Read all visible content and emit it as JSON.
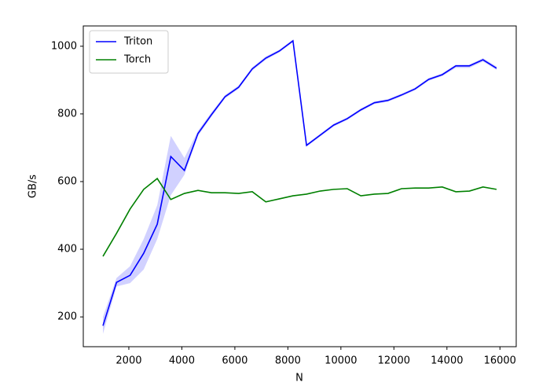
{
  "chart_data": {
    "type": "line",
    "x_label": "N",
    "y_label": "GB/s",
    "x": [
      1024,
      1536,
      2048,
      2560,
      3072,
      3584,
      4096,
      4608,
      5120,
      5632,
      6144,
      6656,
      7168,
      7680,
      8192,
      8704,
      9216,
      9728,
      10240,
      10752,
      11264,
      11776,
      12288,
      12800,
      13312,
      13824,
      14336,
      14848,
      15360,
      15872
    ],
    "series": [
      {
        "name": "Triton",
        "color": "#0000ff",
        "values": [
          174,
          302,
          323,
          388,
          474,
          674,
          633,
          742,
          798,
          851,
          879,
          933,
          965,
          986,
          1016,
          707,
          737,
          767,
          786,
          812,
          833,
          840,
          856,
          874,
          902,
          916,
          942,
          942,
          960,
          935
        ],
        "lower": [
          150,
          290,
          300,
          340,
          430,
          560,
          620,
          735,
          792,
          846,
          874,
          928,
          960,
          982,
          1012,
          703,
          733,
          763,
          782,
          808,
          829,
          836,
          852,
          870,
          898,
          912,
          936,
          936,
          955,
          930
        ],
        "upper": [
          200,
          315,
          350,
          430,
          530,
          735,
          670,
          750,
          805,
          856,
          884,
          938,
          970,
          990,
          1020,
          711,
          741,
          771,
          790,
          816,
          837,
          844,
          860,
          878,
          906,
          920,
          946,
          946,
          965,
          940
        ]
      },
      {
        "name": "Torch",
        "color": "#008000",
        "values": [
          379,
          447,
          519,
          577,
          609,
          547,
          565,
          574,
          567,
          567,
          565,
          570,
          540,
          549,
          558,
          563,
          572,
          577,
          579,
          558,
          563,
          565,
          579,
          581,
          581,
          584,
          570,
          572,
          584,
          577
        ]
      }
    ],
    "band_opacity": 0.18,
    "xlim": [
      282,
      16614
    ],
    "xticks": [
      2000,
      4000,
      6000,
      8000,
      10000,
      12000,
      14000,
      16000
    ],
    "ylim": [
      112,
      1060
    ],
    "yticks": [
      200,
      400,
      600,
      800,
      1000
    ],
    "legend": "upper left",
    "grid": false
  }
}
